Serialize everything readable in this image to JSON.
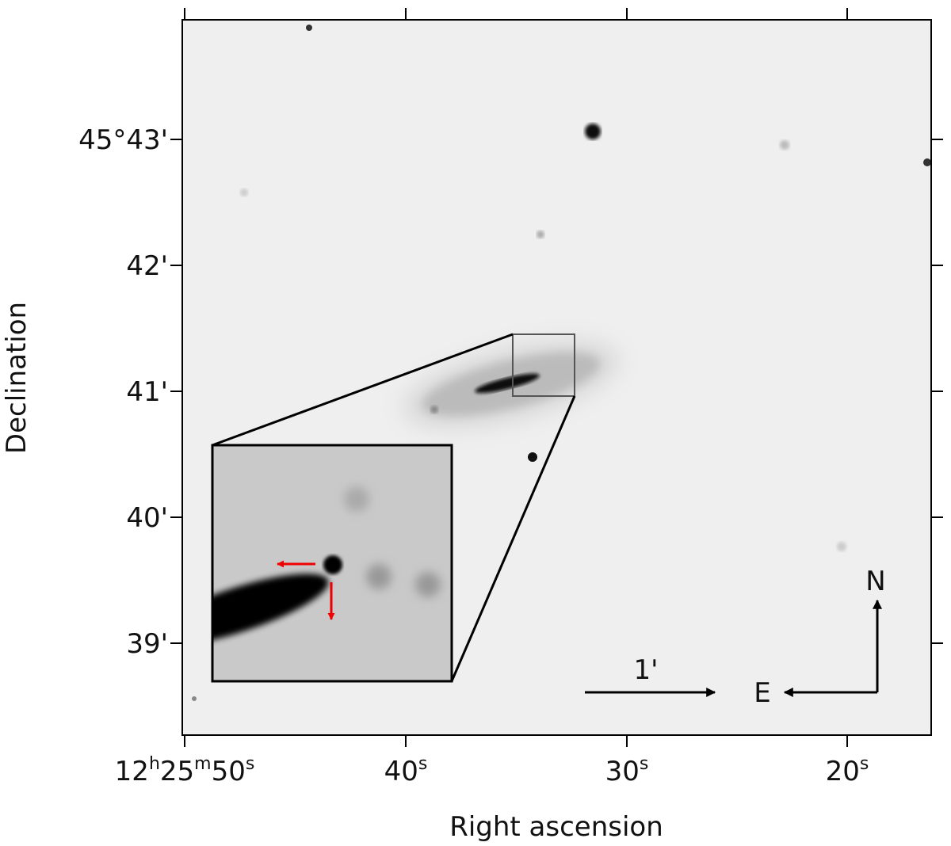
{
  "x_axis": {
    "label": "Right ascension",
    "ticks": [
      "12h25m50s",
      "40s",
      "30s",
      "20s"
    ]
  },
  "y_axis": {
    "label": "Declination",
    "ticks": [
      "45°43'",
      "42'",
      "41'",
      "40'",
      "39'"
    ]
  },
  "annotations": {
    "scale": "1'",
    "north": "N",
    "east": "E"
  }
}
